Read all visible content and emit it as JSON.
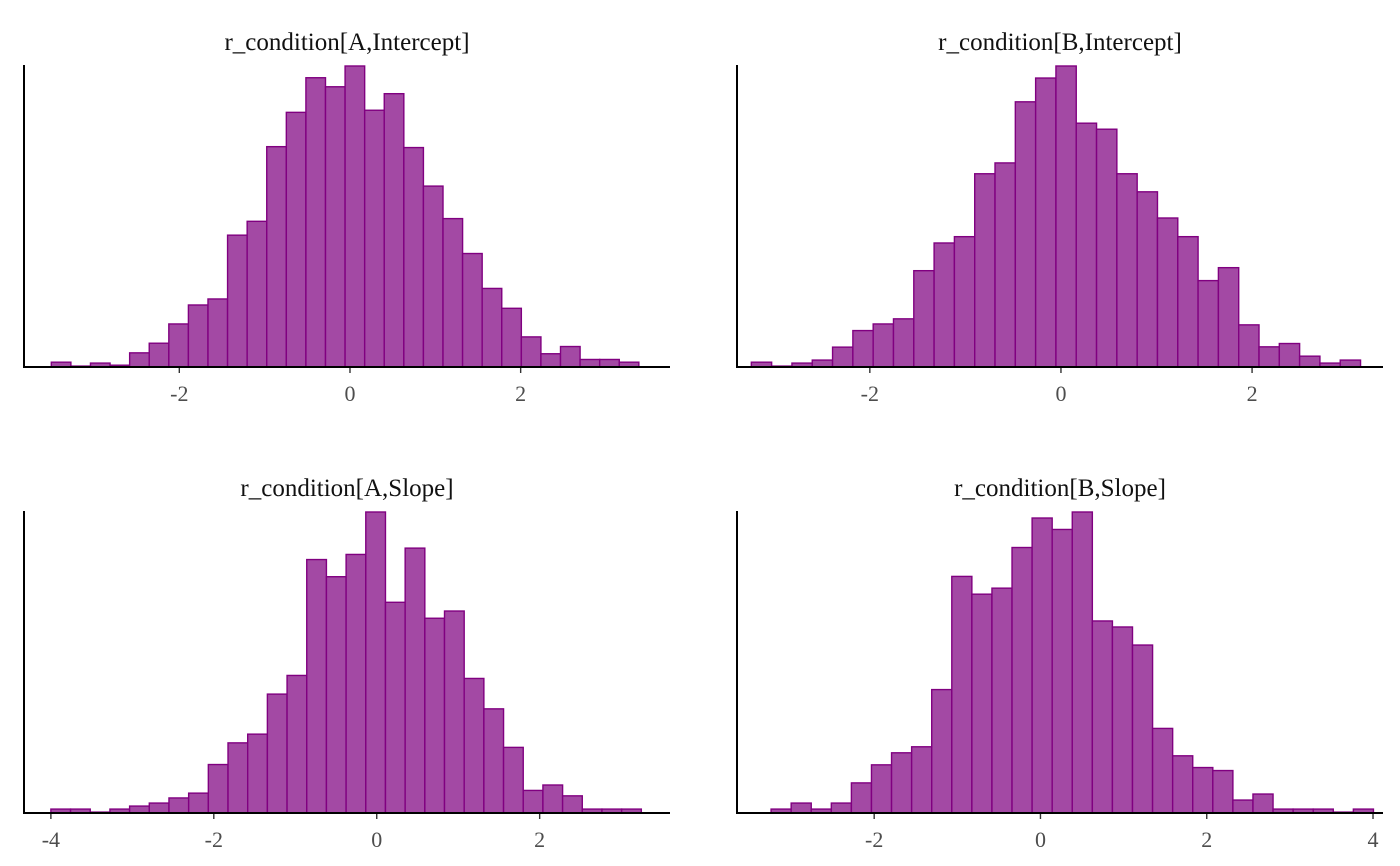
{
  "chart_data": [
    {
      "type": "bar",
      "title": "r_condition[A,Intercept]",
      "xlim": [
        -3.82,
        3.75
      ],
      "bin_width": 0.2295,
      "x_start": -3.5,
      "xticks": [
        -2,
        0,
        2
      ],
      "xtick_labels": [
        "-2",
        "0",
        "2"
      ],
      "counts": [
        0.016,
        0.003,
        0.013,
        0.006,
        0.047,
        0.079,
        0.143,
        0.206,
        0.226,
        0.438,
        0.484,
        0.732,
        0.846,
        0.961,
        0.931,
        1.0,
        0.853,
        0.908,
        0.729,
        0.601,
        0.493,
        0.377,
        0.261,
        0.195,
        0.1,
        0.044,
        0.068,
        0.025,
        0.025,
        0.016
      ],
      "fill": "#a349a4",
      "stroke": "#800080"
    },
    {
      "type": "bar",
      "title": "r_condition[B,Intercept]",
      "xlim": [
        -3.39,
        3.37
      ],
      "bin_width": 0.2125,
      "x_start": -3.24,
      "xticks": [
        -2,
        0,
        2
      ],
      "xtick_labels": [
        "-2",
        "0",
        "2"
      ],
      "counts": [
        0.016,
        0.003,
        0.013,
        0.023,
        0.066,
        0.121,
        0.143,
        0.16,
        0.32,
        0.412,
        0.433,
        0.642,
        0.678,
        0.881,
        0.96,
        1.0,
        0.81,
        0.79,
        0.642,
        0.582,
        0.495,
        0.433,
        0.287,
        0.33,
        0.14,
        0.067,
        0.078,
        0.036,
        0.013,
        0.023
      ],
      "fill": "#a349a4",
      "stroke": "#800080"
    },
    {
      "type": "bar",
      "title": "r_condition[A,Slope]",
      "xlim": [
        -4.33,
        3.6
      ],
      "bin_width": 0.2416,
      "x_start": -4.0,
      "xticks": [
        -4,
        -2,
        0,
        2
      ],
      "xtick_labels": [
        "-4",
        "-2",
        "0",
        "2"
      ],
      "counts": [
        0.013,
        0.013,
        0.003,
        0.013,
        0.023,
        0.033,
        0.05,
        0.066,
        0.161,
        0.233,
        0.262,
        0.395,
        0.457,
        0.842,
        0.785,
        0.859,
        1.0,
        0.7,
        0.88,
        0.647,
        0.671,
        0.447,
        0.346,
        0.218,
        0.075,
        0.093,
        0.057,
        0.013,
        0.013,
        0.013
      ],
      "fill": "#a349a4",
      "stroke": "#800080"
    },
    {
      "type": "bar",
      "title": "r_condition[B,Slope]",
      "xlim": [
        -3.65,
        4.12
      ],
      "bin_width": 0.2415,
      "x_start": -3.24,
      "xticks": [
        -2,
        0,
        2,
        4
      ],
      "xtick_labels": [
        "-2",
        "0",
        "2",
        "4"
      ],
      "counts": [
        0.013,
        0.033,
        0.013,
        0.033,
        0.1,
        0.16,
        0.2,
        0.22,
        0.41,
        0.786,
        0.727,
        0.747,
        0.882,
        0.98,
        0.942,
        1.0,
        0.638,
        0.618,
        0.558,
        0.281,
        0.19,
        0.151,
        0.141,
        0.043,
        0.063,
        0.013,
        0.013,
        0.013,
        0.003,
        0.013
      ],
      "fill": "#a349a4",
      "stroke": "#800080"
    }
  ]
}
